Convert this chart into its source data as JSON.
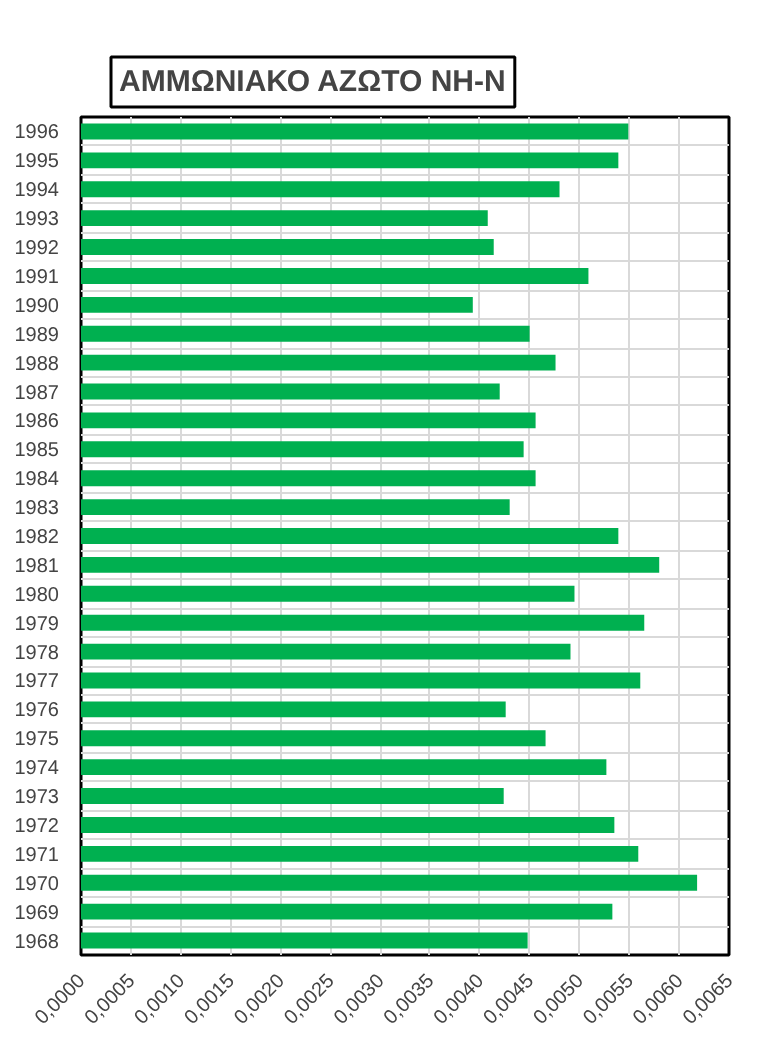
{
  "chart_data": {
    "type": "bar",
    "orientation": "horizontal",
    "title": "ΑΜΜΩΝΙΑΚΟ ΑΖΩΤΟ ΝΗ-Ν",
    "categories": [
      "1996",
      "1995",
      "1994",
      "1993",
      "1992",
      "1991",
      "1990",
      "1989",
      "1988",
      "1987",
      "1986",
      "1985",
      "1984",
      "1983",
      "1982",
      "1981",
      "1980",
      "1979",
      "1978",
      "1977",
      "1976",
      "1975",
      "1974",
      "1973",
      "1972",
      "1971",
      "1970",
      "1969",
      "1968"
    ],
    "values": [
      0.00549,
      0.00539,
      0.0048,
      0.00408,
      0.00414,
      0.00509,
      0.00393,
      0.0045,
      0.00476,
      0.0042,
      0.00456,
      0.00444,
      0.00456,
      0.0043,
      0.00539,
      0.0058,
      0.00495,
      0.00565,
      0.00491,
      0.00561,
      0.00426,
      0.00466,
      0.00527,
      0.00424,
      0.00535,
      0.00559,
      0.00618,
      0.00533,
      0.00448
    ],
    "color": "#00b050",
    "xlim": [
      0,
      0.0065
    ],
    "xticks": [
      {
        "value": 0,
        "label": "0,0000"
      },
      {
        "value": 0.0005,
        "label": "0,0005"
      },
      {
        "value": 0.001,
        "label": "0,0010"
      },
      {
        "value": 0.0015,
        "label": "0,0015"
      },
      {
        "value": 0.002,
        "label": "0,0020"
      },
      {
        "value": 0.0025,
        "label": "0,0025"
      },
      {
        "value": 0.003,
        "label": "0,0030"
      },
      {
        "value": 0.0035,
        "label": "0,0035"
      },
      {
        "value": 0.004,
        "label": "0,0040"
      },
      {
        "value": 0.0045,
        "label": "0,0045"
      },
      {
        "value": 0.005,
        "label": "0,0050"
      },
      {
        "value": 0.0055,
        "label": "0,0055"
      },
      {
        "value": 0.006,
        "label": "0,0060"
      },
      {
        "value": 0.0065,
        "label": "0,0065"
      }
    ],
    "grid": true
  }
}
